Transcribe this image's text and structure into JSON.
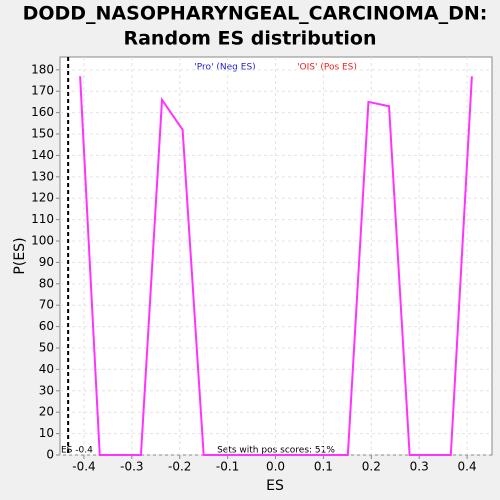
{
  "chart_data": {
    "type": "line",
    "title": "DODD_NASOPHARYNGEAL_CARCINOMA_DN:",
    "subtitle": "Random ES distribution",
    "x_label": "ES",
    "y_label": "P(ES)",
    "x": [
      -0.408,
      -0.367,
      -0.281,
      -0.237,
      -0.194,
      -0.15,
      0.151,
      0.194,
      0.237,
      0.28,
      0.366,
      0.41
    ],
    "series": [
      {
        "color": "#ff33ff",
        "values": [
          177,
          0,
          0,
          166,
          152,
          0,
          0,
          165,
          163,
          0,
          0,
          177
        ]
      }
    ],
    "xlim": [
      -0.45,
      0.452
    ],
    "ylim": [
      0,
      186
    ],
    "xticks": [
      -0.4,
      -0.3,
      -0.2,
      -0.1,
      {
        "value": 0,
        "label": "0.0"
      },
      0.1,
      0.2,
      0.3,
      0.4
    ],
    "yticks": [
      0,
      10,
      20,
      30,
      40,
      50,
      60,
      70,
      80,
      90,
      100,
      110,
      120,
      130,
      140,
      150,
      160,
      170,
      180
    ],
    "grid": true,
    "neg_label": "'Pro' (Neg ES)",
    "neg_color": "#2222cc",
    "pos_label": "'OIS' (Pos ES)",
    "pos_color": "#ee2222",
    "marker_x": -0.433,
    "marker_label": "ES -0.4",
    "footnote": "Sets with pos scores: 51%"
  }
}
